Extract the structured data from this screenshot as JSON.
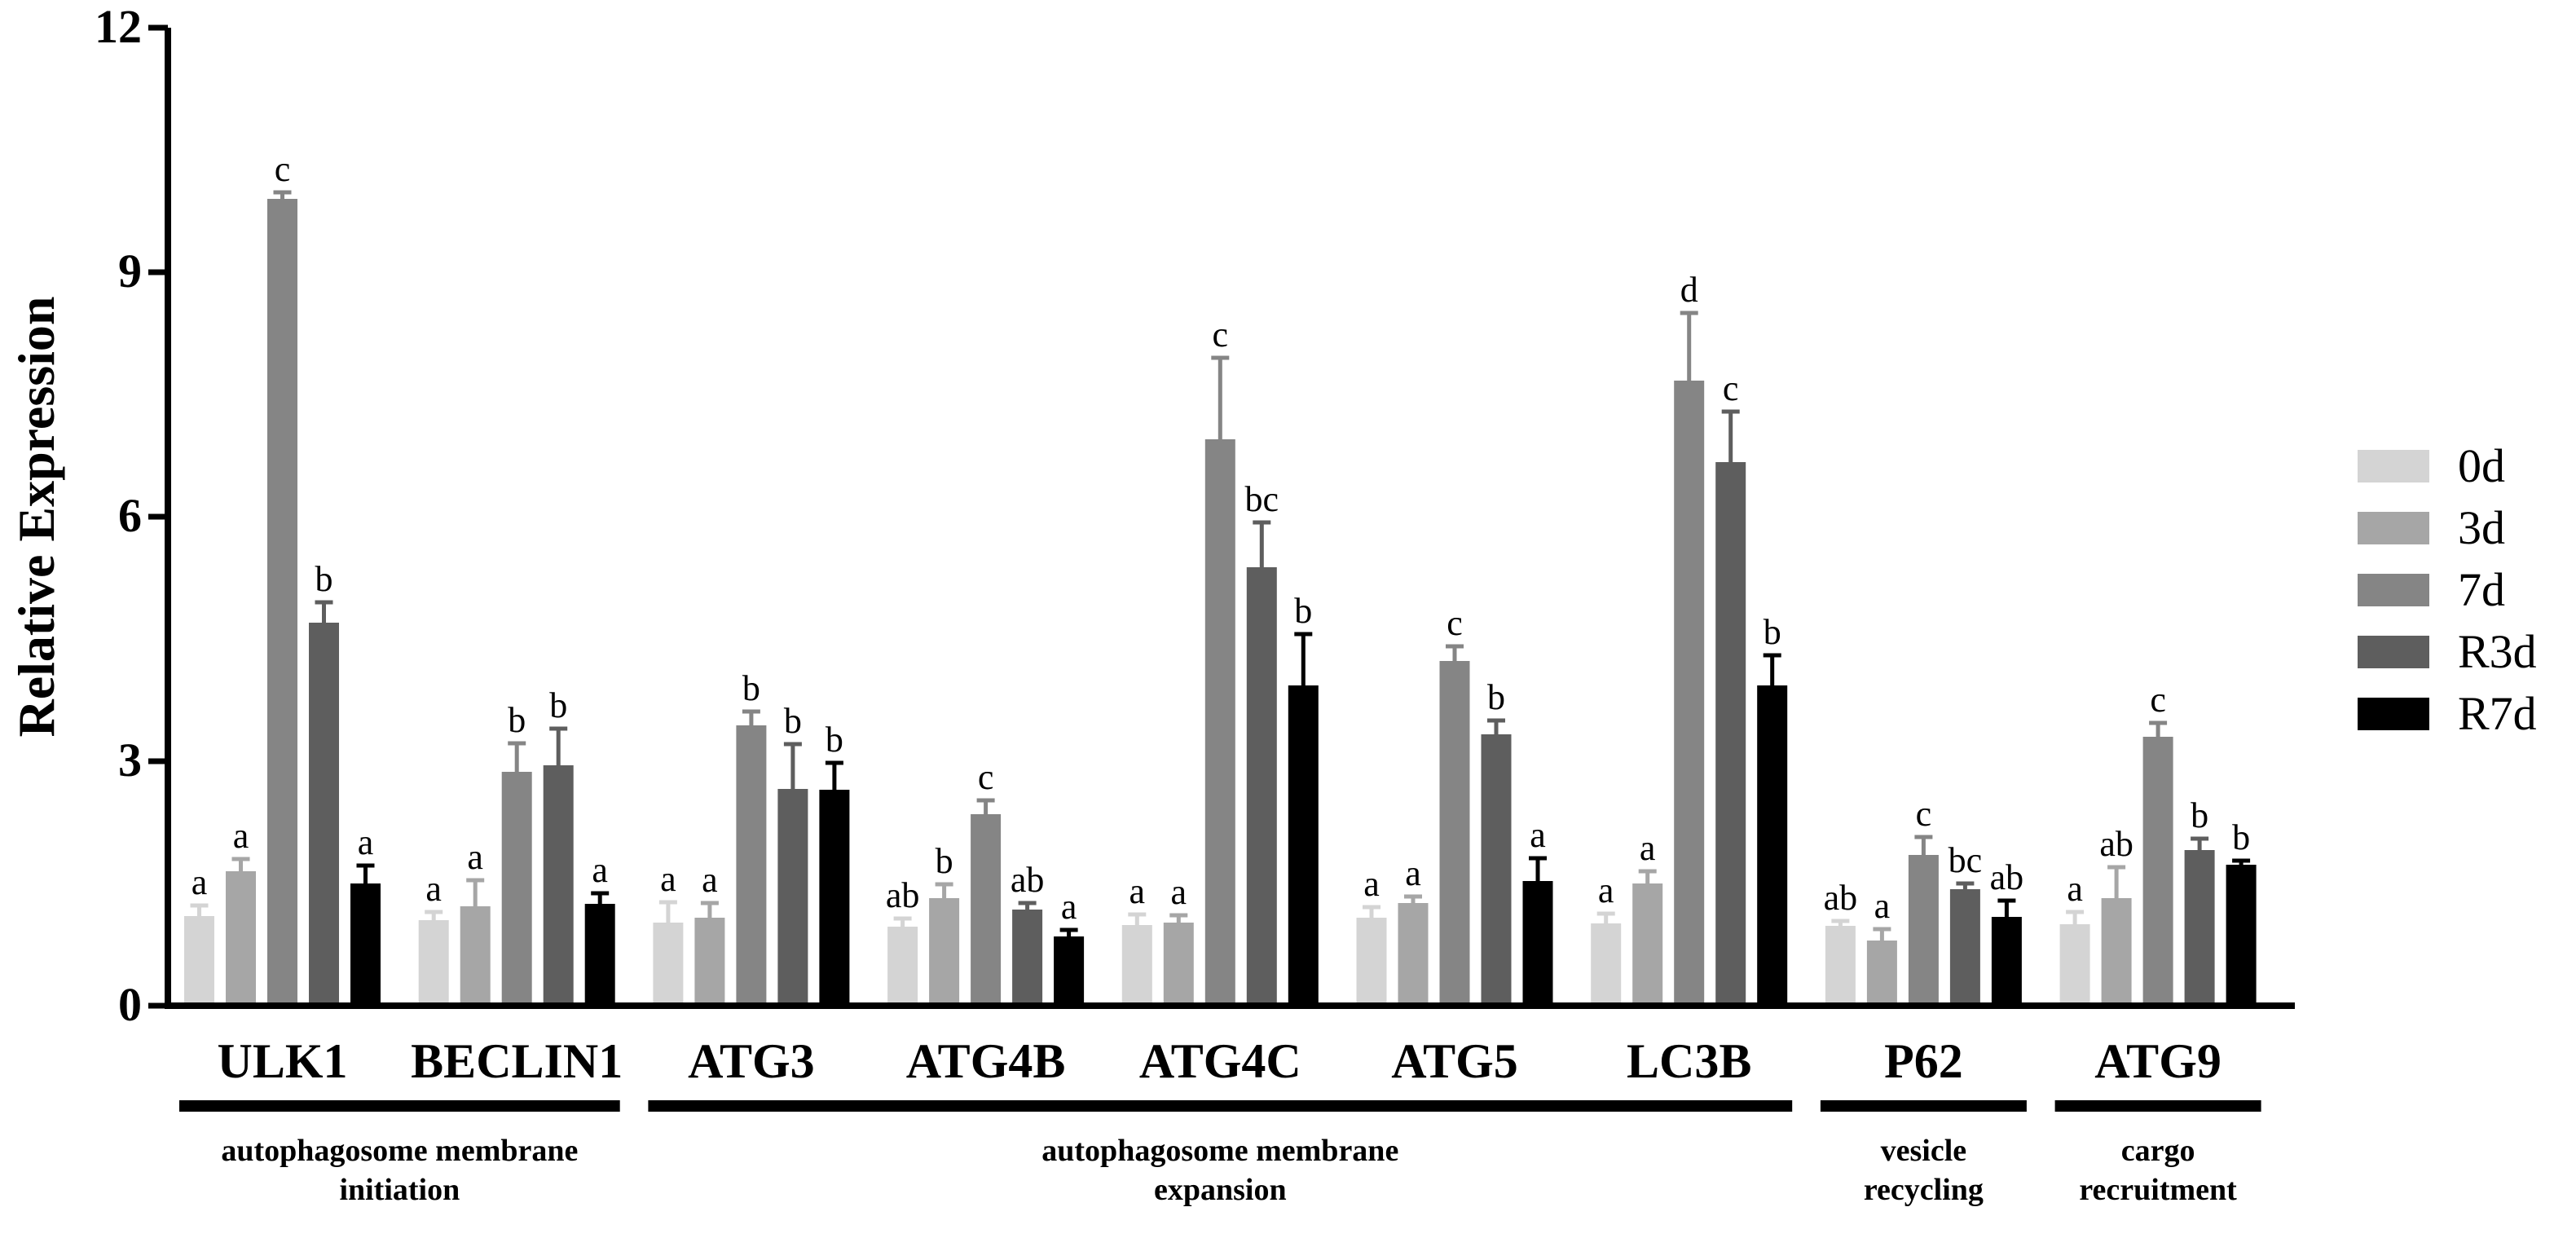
{
  "chart_data": {
    "type": "bar",
    "title": "",
    "xlabel": "",
    "ylabel": "Relative Expression",
    "ylim": [
      0,
      12
    ],
    "yticks": [
      "0",
      "3",
      "6",
      "9",
      "12"
    ],
    "grid": false,
    "legend_position": "right",
    "categories": [
      "ULK1",
      "BECLIN1",
      "ATG3",
      "ATG4B",
      "ATG4C",
      "ATG5",
      "LC3B",
      "P62",
      "ATG9"
    ],
    "series": [
      {
        "name": "0d",
        "color": "#d4d4d4",
        "values": [
          1.1,
          1.05,
          1.02,
          0.97,
          0.99,
          1.08,
          1.01,
          0.98,
          1.0
        ],
        "errors": [
          0.13,
          0.1,
          0.25,
          0.1,
          0.13,
          0.13,
          0.12,
          0.06,
          0.15
        ],
        "labels": [
          "a",
          "a",
          "a",
          "ab",
          "a",
          "a",
          "a",
          "ab",
          "a"
        ]
      },
      {
        "name": "3d",
        "color": "#a6a6a6",
        "values": [
          1.65,
          1.22,
          1.08,
          1.32,
          1.02,
          1.26,
          1.5,
          0.8,
          1.32
        ],
        "errors": [
          0.15,
          0.32,
          0.18,
          0.17,
          0.09,
          0.08,
          0.15,
          0.14,
          0.38
        ],
        "labels": [
          "a",
          "a",
          "a",
          "b",
          "a",
          "a",
          "a",
          "a",
          "ab"
        ]
      },
      {
        "name": "7d",
        "color": "#858585",
        "values": [
          9.9,
          2.87,
          3.44,
          2.35,
          6.95,
          4.23,
          7.67,
          1.85,
          3.3
        ],
        "errors": [
          0.08,
          0.35,
          0.17,
          0.17,
          1.0,
          0.18,
          0.83,
          0.22,
          0.17
        ],
        "labels": [
          "c",
          "b",
          "b",
          "c",
          "c",
          "c",
          "d",
          "c",
          "c"
        ]
      },
      {
        "name": "R3d",
        "color": "#5e5e5e",
        "values": [
          4.7,
          2.95,
          2.66,
          1.18,
          5.38,
          3.33,
          6.67,
          1.43,
          1.91
        ],
        "errors": [
          0.25,
          0.45,
          0.55,
          0.08,
          0.55,
          0.17,
          0.62,
          0.07,
          0.14
        ],
        "labels": [
          "b",
          "b",
          "b",
          "ab",
          "bc",
          "b",
          "c",
          "bc",
          "b"
        ]
      },
      {
        "name": "R7d",
        "color": "#000000",
        "values": [
          1.5,
          1.25,
          2.65,
          0.85,
          3.93,
          1.53,
          3.93,
          1.09,
          1.73
        ],
        "errors": [
          0.22,
          0.13,
          0.33,
          0.08,
          0.63,
          0.28,
          0.37,
          0.2,
          0.05
        ],
        "labels": [
          "a",
          "a",
          "b",
          "a",
          "b",
          "a",
          "b",
          "ab",
          "b"
        ]
      }
    ],
    "groups": [
      {
        "lines": [
          "autophagosome membrane",
          "initiation"
        ],
        "categories": [
          "ULK1",
          "BECLIN1"
        ]
      },
      {
        "lines": [
          "autophagosome membrane",
          "expansion"
        ],
        "categories": [
          "ATG3",
          "ATG4B",
          "ATG4C",
          "ATG5",
          "LC3B"
        ]
      },
      {
        "lines": [
          "vesicle",
          "recycling"
        ],
        "categories": [
          "P62"
        ]
      },
      {
        "lines": [
          "cargo",
          "recruitment"
        ],
        "categories": [
          "ATG9"
        ]
      }
    ]
  }
}
